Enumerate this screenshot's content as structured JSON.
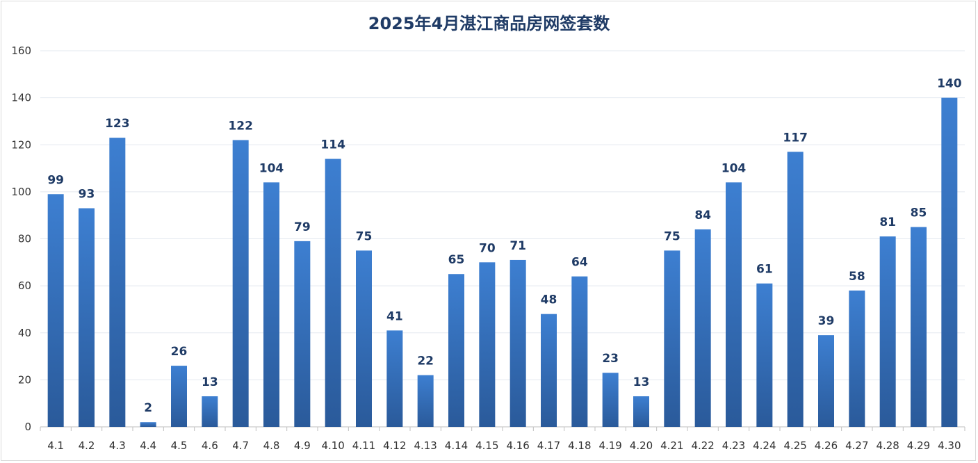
{
  "chart_data": {
    "type": "bar",
    "title": "2025年4月湛江商品房网签套数",
    "xlabel": "",
    "ylabel": "",
    "ylim": [
      0,
      160
    ],
    "yticks": [
      0,
      20,
      40,
      60,
      80,
      100,
      120,
      140,
      160
    ],
    "grid": true,
    "legend": "none",
    "data_labels": true,
    "bar_color_top": "#3d7fd1",
    "bar_color_bottom": "#2a5a9a",
    "categories": [
      "4.1",
      "4.2",
      "4.3",
      "4.4",
      "4.5",
      "4.6",
      "4.7",
      "4.8",
      "4.9",
      "4.10",
      "4.11",
      "4.12",
      "4.13",
      "4.14",
      "4.15",
      "4.16",
      "4.17",
      "4.18",
      "4.19",
      "4.20",
      "4.21",
      "4.22",
      "4.23",
      "4.24",
      "4.25",
      "4.26",
      "4.27",
      "4.28",
      "4.29",
      "4.30"
    ],
    "values": [
      99,
      93,
      123,
      2,
      26,
      13,
      122,
      104,
      79,
      114,
      75,
      41,
      22,
      65,
      70,
      71,
      48,
      64,
      23,
      13,
      75,
      84,
      104,
      61,
      117,
      39,
      58,
      81,
      85,
      140
    ]
  }
}
